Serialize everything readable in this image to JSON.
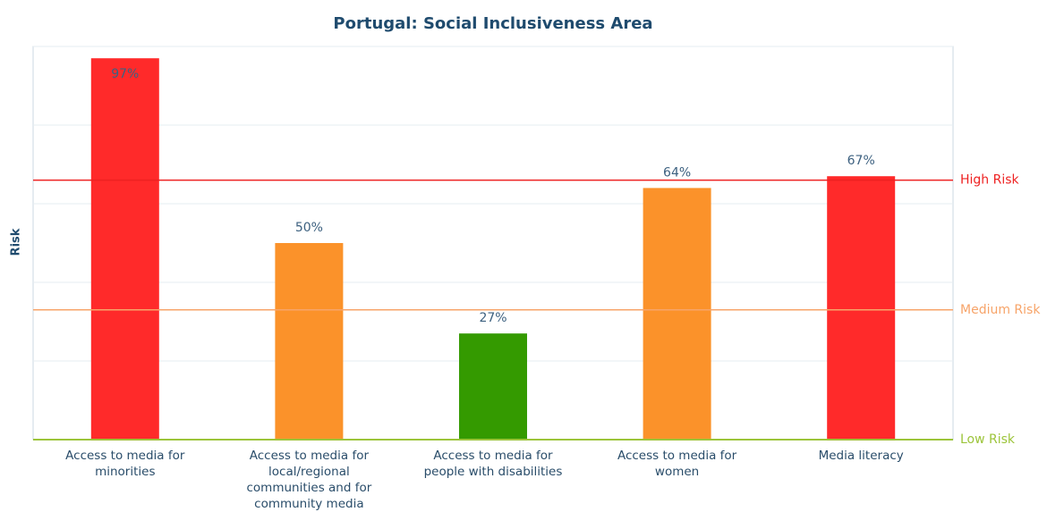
{
  "chart_data": {
    "type": "bar",
    "title": "Portugal: Social Inclusiveness Area",
    "ylabel": "Risk",
    "categories": [
      "Access to media for minorities",
      "Access to media for local/regional communities and for community media",
      "Access to media for people with disabilities",
      "Access to media for women",
      "Media literacy"
    ],
    "values": [
      97,
      50,
      27,
      64,
      67
    ],
    "value_labels": [
      "97%",
      "50%",
      "27%",
      "64%",
      "67%"
    ],
    "colors": [
      "#ff2a2a",
      "#fb922a",
      "#349a00",
      "#fb922a",
      "#ff2a2a"
    ],
    "ylim": [
      0,
      100
    ],
    "yticks": [
      0,
      20,
      40,
      60,
      80,
      100
    ],
    "grid": true,
    "y2ticks": [
      {
        "value": 66,
        "label": "High Risk",
        "color": "#ee2222"
      },
      {
        "value": 33,
        "label": "Medium Risk",
        "color": "#f7a469"
      },
      {
        "value": 0,
        "label": "Low Risk",
        "color": "#9cc43a"
      }
    ]
  }
}
